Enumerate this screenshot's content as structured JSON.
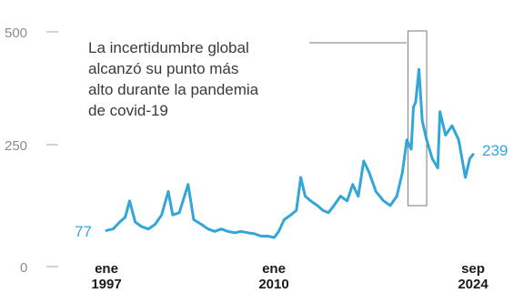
{
  "chart_data": {
    "type": "line",
    "title": "",
    "xlabel": "",
    "ylabel": "",
    "ylim": [
      0,
      500
    ],
    "xlim": [
      "1997-01",
      "2024-09"
    ],
    "grid": false,
    "y_ticks": [
      "0",
      "250",
      "500"
    ],
    "x_ticks": [
      {
        "line1": "ene",
        "line2": "1997",
        "date": "1997-01"
      },
      {
        "line1": "ene",
        "line2": "2010",
        "date": "2010-01"
      },
      {
        "line1": "sep",
        "line2": "2024",
        "date": "2024-09"
      }
    ],
    "start_label": "77",
    "end_label": "239",
    "annotation": {
      "lines": [
        "La incertidumbre global",
        "alcanzó su punto más",
        "alto durante la pandemia",
        "de covid-19"
      ],
      "highlight_from": "2019-10",
      "highlight_to": "2021-03"
    },
    "series": [
      {
        "color": "#33a6d8",
        "points": [
          [
            "1997-01",
            77
          ],
          [
            "1997-07",
            80
          ],
          [
            "1998-01",
            95
          ],
          [
            "1998-06",
            105
          ],
          [
            "1998-10",
            140
          ],
          [
            "1999-03",
            95
          ],
          [
            "1999-09",
            85
          ],
          [
            "2000-03",
            80
          ],
          [
            "2000-09",
            90
          ],
          [
            "2001-03",
            110
          ],
          [
            "2001-09",
            160
          ],
          [
            "2002-01",
            110
          ],
          [
            "2002-07",
            115
          ],
          [
            "2003-03",
            175
          ],
          [
            "2003-08",
            100
          ],
          [
            "2004-03",
            90
          ],
          [
            "2004-09",
            80
          ],
          [
            "2005-03",
            75
          ],
          [
            "2005-09",
            80
          ],
          [
            "2006-03",
            75
          ],
          [
            "2006-09",
            72
          ],
          [
            "2007-03",
            75
          ],
          [
            "2007-09",
            72
          ],
          [
            "2008-03",
            70
          ],
          [
            "2008-09",
            65
          ],
          [
            "2009-03",
            65
          ],
          [
            "2009-09",
            62
          ],
          [
            "2010-01",
            75
          ],
          [
            "2010-06",
            100
          ],
          [
            "2010-12",
            110
          ],
          [
            "2011-05",
            120
          ],
          [
            "2011-09",
            190
          ],
          [
            "2012-01",
            150
          ],
          [
            "2012-06",
            140
          ],
          [
            "2012-12",
            130
          ],
          [
            "2013-05",
            120
          ],
          [
            "2013-10",
            115
          ],
          [
            "2014-03",
            130
          ],
          [
            "2014-09",
            150
          ],
          [
            "2015-03",
            140
          ],
          [
            "2015-08",
            175
          ],
          [
            "2016-01",
            150
          ],
          [
            "2016-06",
            225
          ],
          [
            "2016-11",
            200
          ],
          [
            "2017-05",
            160
          ],
          [
            "2017-12",
            140
          ],
          [
            "2018-06",
            130
          ],
          [
            "2018-12",
            150
          ],
          [
            "2019-05",
            200
          ],
          [
            "2019-09",
            270
          ],
          [
            "2020-01",
            250
          ],
          [
            "2020-03",
            340
          ],
          [
            "2020-05",
            350
          ],
          [
            "2020-08",
            420
          ],
          [
            "2020-11",
            310
          ],
          [
            "2021-03",
            270
          ],
          [
            "2021-08",
            230
          ],
          [
            "2022-01",
            210
          ],
          [
            "2022-03",
            330
          ],
          [
            "2022-08",
            280
          ],
          [
            "2023-02",
            300
          ],
          [
            "2023-08",
            270
          ],
          [
            "2024-02",
            190
          ],
          [
            "2024-06",
            230
          ],
          [
            "2024-09",
            239
          ]
        ]
      }
    ]
  }
}
